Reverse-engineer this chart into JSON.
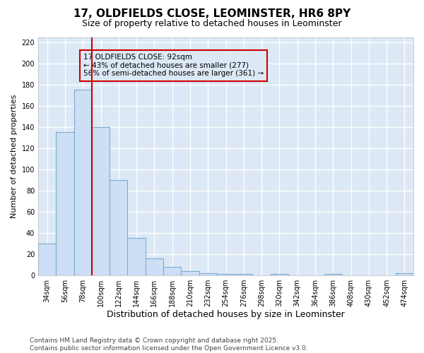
{
  "title": "17, OLDFIELDS CLOSE, LEOMINSTER, HR6 8PY",
  "subtitle": "Size of property relative to detached houses in Leominster",
  "xlabel": "Distribution of detached houses by size in Leominster",
  "ylabel": "Number of detached properties",
  "categories": [
    "34sqm",
    "56sqm",
    "78sqm",
    "100sqm",
    "122sqm",
    "144sqm",
    "166sqm",
    "188sqm",
    "210sqm",
    "232sqm",
    "254sqm",
    "276sqm",
    "298sqm",
    "320sqm",
    "342sqm",
    "364sqm",
    "386sqm",
    "408sqm",
    "430sqm",
    "452sqm",
    "474sqm"
  ],
  "values": [
    30,
    135,
    175,
    140,
    90,
    35,
    16,
    8,
    4,
    2,
    1,
    1,
    0,
    1,
    0,
    0,
    1,
    0,
    0,
    0,
    2
  ],
  "bar_color": "#ccdff5",
  "bar_edge_color": "#7aadd4",
  "property_line_color": "#cc0000",
  "annotation_line1": "17 OLDFIELDS CLOSE: 92sqm",
  "annotation_line2": "← 43% of detached houses are smaller (277)",
  "annotation_line3": "56% of semi-detached houses are larger (361) →",
  "annotation_box_color": "#cc0000",
  "ylim": [
    0,
    225
  ],
  "yticks": [
    0,
    20,
    40,
    60,
    80,
    100,
    120,
    140,
    160,
    180,
    200,
    220
  ],
  "ax_background": "#dce8f5",
  "fig_background": "#ffffff",
  "grid_color": "#ffffff",
  "footer_line1": "Contains HM Land Registry data © Crown copyright and database right 2025.",
  "footer_line2": "Contains public sector information licensed under the Open Government Licence v3.0.",
  "title_fontsize": 11,
  "subtitle_fontsize": 9,
  "xlabel_fontsize": 9,
  "ylabel_fontsize": 8,
  "tick_fontsize": 7,
  "footer_fontsize": 6.5
}
